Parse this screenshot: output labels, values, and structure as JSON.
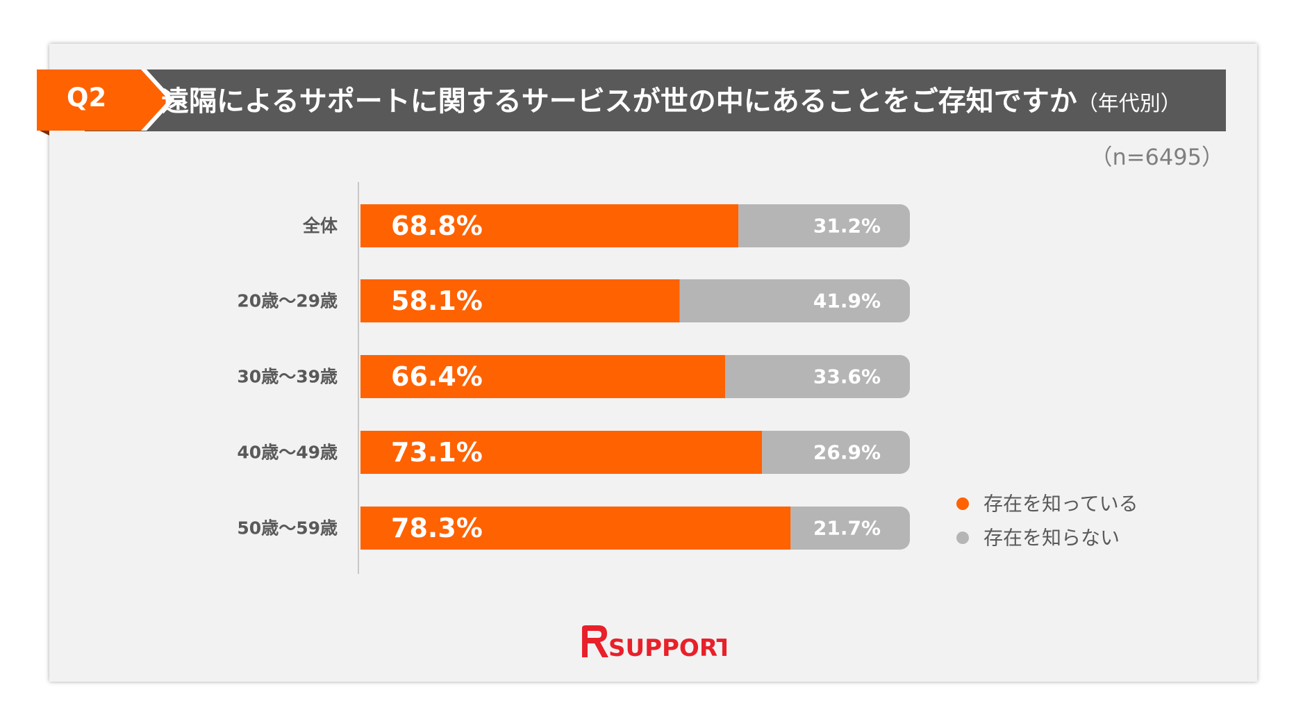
{
  "header": {
    "question_label": "Q2",
    "title": "遠隔によるサポートに関するサービスが世の中にあることをご存知ですか",
    "title_suffix": "（年代別）",
    "sample_size": "（n=6495）"
  },
  "colors": {
    "accent": "#ff6200",
    "secondary": "#b5b5b5",
    "title_bar": "#595959",
    "background": "#f2f2f2",
    "category_text": "#595959"
  },
  "chart_data": {
    "type": "bar",
    "orientation": "horizontal",
    "stacked": true,
    "percent_stacked": true,
    "categories": [
      "全体",
      "20歳〜29歳",
      "30歳〜39歳",
      "40歳〜49歳",
      "50歳〜59歳"
    ],
    "series": [
      {
        "name": "存在を知っている",
        "values": [
          68.8,
          58.1,
          66.4,
          73.1,
          78.3
        ],
        "labels": [
          "68.8%",
          "58.1%",
          "66.4%",
          "73.1%",
          "78.3%"
        ],
        "color": "#ff6200"
      },
      {
        "name": "存在を知らない",
        "values": [
          31.2,
          41.9,
          33.6,
          26.9,
          21.7
        ],
        "labels": [
          "31.2%",
          "41.9%",
          "33.6%",
          "26.9%",
          "21.7%"
        ],
        "color": "#b5b5b5"
      }
    ],
    "xlim": [
      0,
      100
    ],
    "legend_position": "right",
    "grid": false
  },
  "logo": {
    "text": "SUPPORT",
    "color": "#e8202a"
  }
}
